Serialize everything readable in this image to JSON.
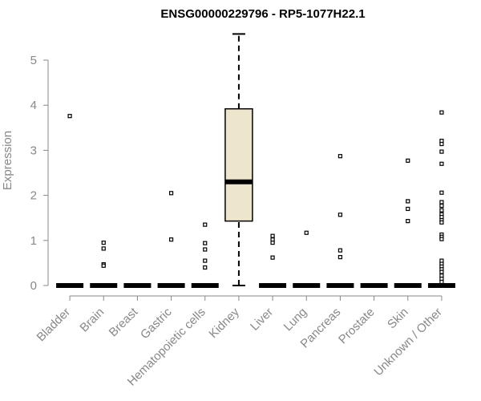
{
  "chart_data": {
    "type": "boxplot",
    "title": "ENSG00000229796 - RP5-1077H22.1",
    "ylabel": "Expression",
    "xlabel": "",
    "ylim": [
      0,
      5.6
    ],
    "yticks": [
      0,
      1,
      2,
      3,
      4,
      5
    ],
    "grid": false,
    "box_fill": "#ede6cc",
    "categories": [
      "Bladder",
      "Brain",
      "Breast",
      "Gastric",
      "Hematopoietic cells",
      "Kidney",
      "Liver",
      "Lung",
      "Pancreas",
      "Prostate",
      "Skin",
      "Unknown / Other"
    ],
    "boxes": [
      {
        "category": "Bladder",
        "min": 0,
        "q1": 0,
        "median": 0,
        "q3": 0,
        "max": 0,
        "outliers": [
          3.76
        ]
      },
      {
        "category": "Brain",
        "min": 0,
        "q1": 0,
        "median": 0,
        "q3": 0,
        "max": 0,
        "outliers": [
          0.95,
          0.82,
          0.47,
          0.44
        ]
      },
      {
        "category": "Breast",
        "min": 0,
        "q1": 0,
        "median": 0,
        "q3": 0,
        "max": 0,
        "outliers": []
      },
      {
        "category": "Gastric",
        "min": 0,
        "q1": 0,
        "median": 0,
        "q3": 0,
        "max": 0,
        "outliers": [
          2.05,
          1.02
        ]
      },
      {
        "category": "Hematopoietic cells",
        "min": 0,
        "q1": 0,
        "median": 0,
        "q3": 0,
        "max": 0,
        "outliers": [
          1.35,
          0.94,
          0.8,
          0.55,
          0.4
        ]
      },
      {
        "category": "Kidney",
        "min": 0,
        "q1": 1.43,
        "median": 2.3,
        "q3": 3.92,
        "max": 5.58,
        "outliers": []
      },
      {
        "category": "Liver",
        "min": 0,
        "q1": 0,
        "median": 0,
        "q3": 0,
        "max": 0,
        "outliers": [
          1.1,
          1.02,
          0.95,
          0.62
        ]
      },
      {
        "category": "Lung",
        "min": 0,
        "q1": 0,
        "median": 0,
        "q3": 0,
        "max": 0,
        "outliers": [
          1.17
        ]
      },
      {
        "category": "Pancreas",
        "min": 0,
        "q1": 0,
        "median": 0,
        "q3": 0,
        "max": 0,
        "outliers": [
          2.87,
          1.57,
          0.78,
          0.63
        ]
      },
      {
        "category": "Prostate",
        "min": 0,
        "q1": 0,
        "median": 0,
        "q3": 0,
        "max": 0,
        "outliers": []
      },
      {
        "category": "Skin",
        "min": 0,
        "q1": 0,
        "median": 0,
        "q3": 0,
        "max": 0,
        "outliers": [
          2.77,
          1.87,
          1.7,
          1.43
        ]
      },
      {
        "category": "Unknown / Other",
        "min": 0,
        "q1": 0,
        "median": 0,
        "q3": 0,
        "max": 0,
        "outliers": [
          3.84,
          3.21,
          3.14,
          2.97,
          2.7,
          2.06,
          1.85,
          1.77,
          1.67,
          1.58,
          1.52,
          1.45,
          1.4,
          1.13,
          1.08,
          1.03,
          0.55,
          0.48,
          0.42,
          0.36,
          0.3,
          0.22,
          0.15,
          0.08
        ]
      }
    ]
  }
}
